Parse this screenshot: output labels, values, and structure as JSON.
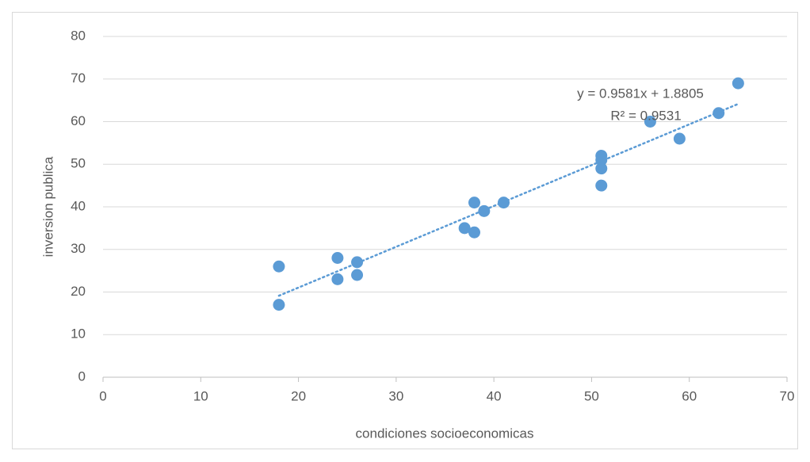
{
  "chart_data": {
    "type": "scatter",
    "x_label": "condiciones socioeconomicas",
    "y_label": "inversion publica",
    "series": [
      {
        "color": "#5b9bd5",
        "x": [
          18,
          18,
          24,
          24,
          26,
          26,
          37,
          38,
          38,
          39,
          41,
          51,
          51,
          51,
          51,
          56,
          59,
          63,
          65
        ],
        "values": [
          26,
          17,
          28,
          23,
          27,
          24,
          35,
          41,
          34,
          39,
          41,
          52,
          51,
          49,
          45,
          60,
          56,
          62,
          69
        ]
      }
    ],
    "trendline": {
      "slope": 0.9581,
      "intercept": 1.8805,
      "color": "#5b9bd5",
      "equation_label": "y = 0.9581x + 1.8805",
      "r2_label": "R² = 0.9531"
    },
    "xlim": [
      0,
      70
    ],
    "xticks": [
      0,
      10,
      20,
      30,
      40,
      50,
      60,
      70
    ],
    "ylim": [
      0,
      80
    ],
    "yticks": [
      0,
      10,
      20,
      30,
      40,
      50,
      60,
      70,
      80
    ],
    "grid": true
  }
}
